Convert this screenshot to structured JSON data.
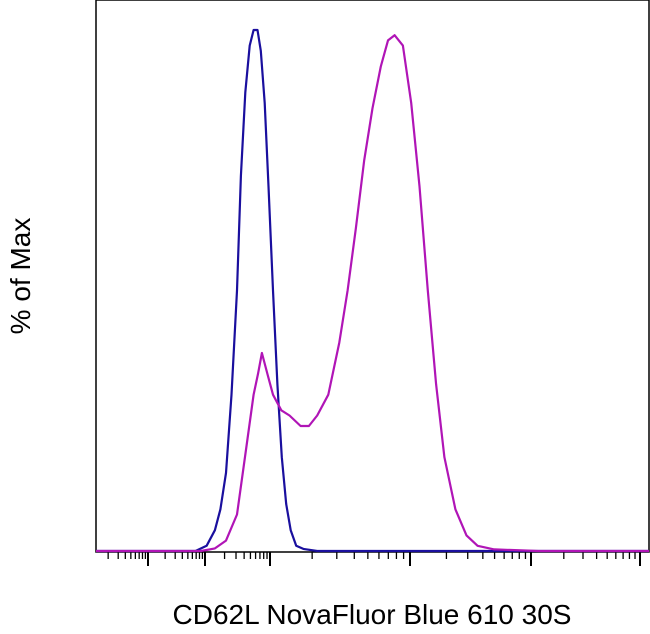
{
  "chart_data": {
    "type": "area",
    "title": "",
    "xlabel": "CD62L NovaFluor Blue 610 30S",
    "ylabel": "% of Max",
    "xscale": "biexponential",
    "xticklabels": [],
    "yticklabels": [],
    "grid": false,
    "legend": "none",
    "ylim": [
      0,
      100
    ],
    "series": [
      {
        "color": "#1a0f9e",
        "points": [
          [
            0.0,
            0
          ],
          [
            0.15,
            0
          ],
          [
            0.18,
            0
          ],
          [
            0.2,
            1
          ],
          [
            0.215,
            4
          ],
          [
            0.225,
            8
          ],
          [
            0.235,
            15
          ],
          [
            0.245,
            30
          ],
          [
            0.255,
            50
          ],
          [
            0.262,
            72
          ],
          [
            0.27,
            88
          ],
          [
            0.278,
            97
          ],
          [
            0.285,
            100
          ],
          [
            0.292,
            100
          ],
          [
            0.298,
            96
          ],
          [
            0.305,
            86
          ],
          [
            0.312,
            70
          ],
          [
            0.32,
            50
          ],
          [
            0.328,
            32
          ],
          [
            0.336,
            18
          ],
          [
            0.344,
            9
          ],
          [
            0.352,
            4
          ],
          [
            0.362,
            1
          ],
          [
            0.375,
            0.4
          ],
          [
            0.4,
            0
          ],
          [
            0.45,
            0
          ],
          [
            0.55,
            0
          ],
          [
            0.65,
            0
          ],
          [
            0.75,
            0
          ],
          [
            0.85,
            0
          ],
          [
            1.0,
            0
          ]
        ]
      },
      {
        "color": "#b015b6",
        "points": [
          [
            0.0,
            0
          ],
          [
            0.15,
            0
          ],
          [
            0.19,
            0
          ],
          [
            0.215,
            0.5
          ],
          [
            0.235,
            2
          ],
          [
            0.255,
            7
          ],
          [
            0.272,
            20
          ],
          [
            0.285,
            30
          ],
          [
            0.293,
            34
          ],
          [
            0.3,
            38
          ],
          [
            0.31,
            34
          ],
          [
            0.32,
            30
          ],
          [
            0.335,
            27
          ],
          [
            0.35,
            26
          ],
          [
            0.37,
            24
          ],
          [
            0.385,
            24
          ],
          [
            0.4,
            26
          ],
          [
            0.42,
            30
          ],
          [
            0.44,
            40
          ],
          [
            0.455,
            50
          ],
          [
            0.47,
            62
          ],
          [
            0.485,
            75
          ],
          [
            0.5,
            85
          ],
          [
            0.515,
            93
          ],
          [
            0.528,
            98
          ],
          [
            0.54,
            99
          ],
          [
            0.555,
            97
          ],
          [
            0.57,
            86
          ],
          [
            0.585,
            70
          ],
          [
            0.6,
            50
          ],
          [
            0.615,
            32
          ],
          [
            0.63,
            18
          ],
          [
            0.65,
            8
          ],
          [
            0.67,
            3
          ],
          [
            0.69,
            1
          ],
          [
            0.72,
            0.3
          ],
          [
            0.8,
            0
          ],
          [
            0.9,
            0
          ],
          [
            1.0,
            0
          ]
        ]
      }
    ]
  }
}
